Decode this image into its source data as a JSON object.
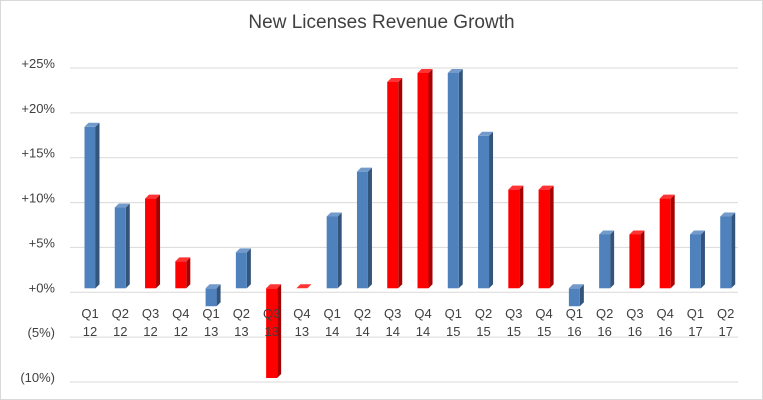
{
  "chart_data": {
    "type": "bar",
    "title": "New Licenses Revenue Growth",
    "xlabel": "",
    "ylabel": "",
    "categories": [
      [
        "Q1",
        "12"
      ],
      [
        "Q2",
        "12"
      ],
      [
        "Q3",
        "12"
      ],
      [
        "Q4",
        "12"
      ],
      [
        "Q1",
        "13"
      ],
      [
        "Q2",
        "13"
      ],
      [
        "Q3",
        "13"
      ],
      [
        "Q4",
        "13"
      ],
      [
        "Q1",
        "14"
      ],
      [
        "Q2",
        "14"
      ],
      [
        "Q3",
        "14"
      ],
      [
        "Q4",
        "14"
      ],
      [
        "Q1",
        "15"
      ],
      [
        "Q2",
        "15"
      ],
      [
        "Q3",
        "15"
      ],
      [
        "Q4",
        "15"
      ],
      [
        "Q1",
        "16"
      ],
      [
        "Q2",
        "16"
      ],
      [
        "Q3",
        "16"
      ],
      [
        "Q4",
        "16"
      ],
      [
        "Q1",
        "17"
      ],
      [
        "Q2",
        "17"
      ]
    ],
    "values": [
      18,
      9,
      10,
      3,
      -2,
      4,
      -10,
      0,
      8,
      13,
      23,
      24,
      24,
      17,
      11,
      11,
      -2,
      6,
      6,
      10,
      6,
      8
    ],
    "bar_colors": [
      "blue",
      "blue",
      "red",
      "red",
      "blue",
      "blue",
      "red",
      "red",
      "blue",
      "blue",
      "red",
      "red",
      "blue",
      "blue",
      "red",
      "red",
      "blue",
      "blue",
      "red",
      "red",
      "blue",
      "blue"
    ],
    "colors": {
      "blue": "#4f81bd",
      "red": "#ff0000"
    },
    "ylim": [
      -10,
      25
    ],
    "yticks": [
      {
        "value": 25,
        "label": "+25%"
      },
      {
        "value": 20,
        "label": "+20%"
      },
      {
        "value": 15,
        "label": "+15%"
      },
      {
        "value": 10,
        "label": "+10%"
      },
      {
        "value": 5,
        "label": "+5%"
      },
      {
        "value": 0,
        "label": "+0%"
      },
      {
        "value": -5,
        "label": "(5%)"
      },
      {
        "value": -10,
        "label": "(10%)"
      }
    ],
    "grid": true,
    "legend": "none"
  }
}
